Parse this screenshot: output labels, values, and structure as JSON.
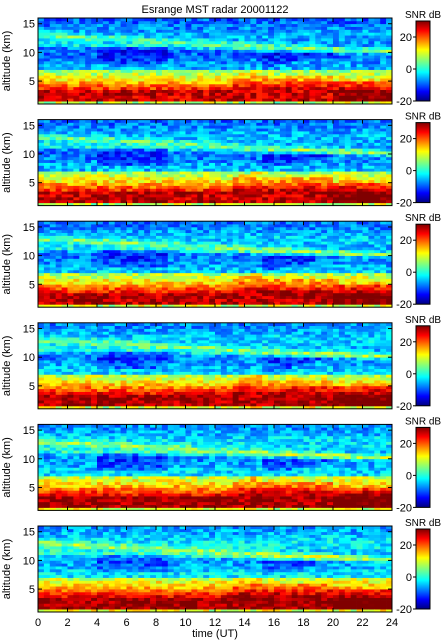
{
  "chart_data": {
    "type": "heatmap",
    "title": "Esrange MST radar 20001122",
    "xlabel": "time (UT)",
    "ylabel": "altitude (km)",
    "xlim": [
      0,
      24
    ],
    "ylim": [
      1,
      16
    ],
    "x_ticks": [
      0,
      2,
      4,
      6,
      8,
      10,
      12,
      14,
      16,
      18,
      20,
      22,
      24
    ],
    "y_ticks": [
      5,
      10,
      15
    ],
    "colorbar": {
      "label": "SNR dB",
      "range": [
        -20,
        30
      ],
      "ticks": [
        20,
        0,
        -20
      ],
      "colormap": "jet"
    },
    "panels": [
      {
        "index": 1
      },
      {
        "index": 2
      },
      {
        "index": 3
      },
      {
        "index": 4
      },
      {
        "index": 5
      },
      {
        "index": 6
      }
    ],
    "colors": {
      "jet_stops": [
        "#00007f",
        "#0000ff",
        "#007fff",
        "#00ffff",
        "#7fff7f",
        "#ffff00",
        "#ff7f00",
        "#ff0000",
        "#7f0000"
      ],
      "axis": "#000000",
      "background": "#ffffff"
    }
  }
}
